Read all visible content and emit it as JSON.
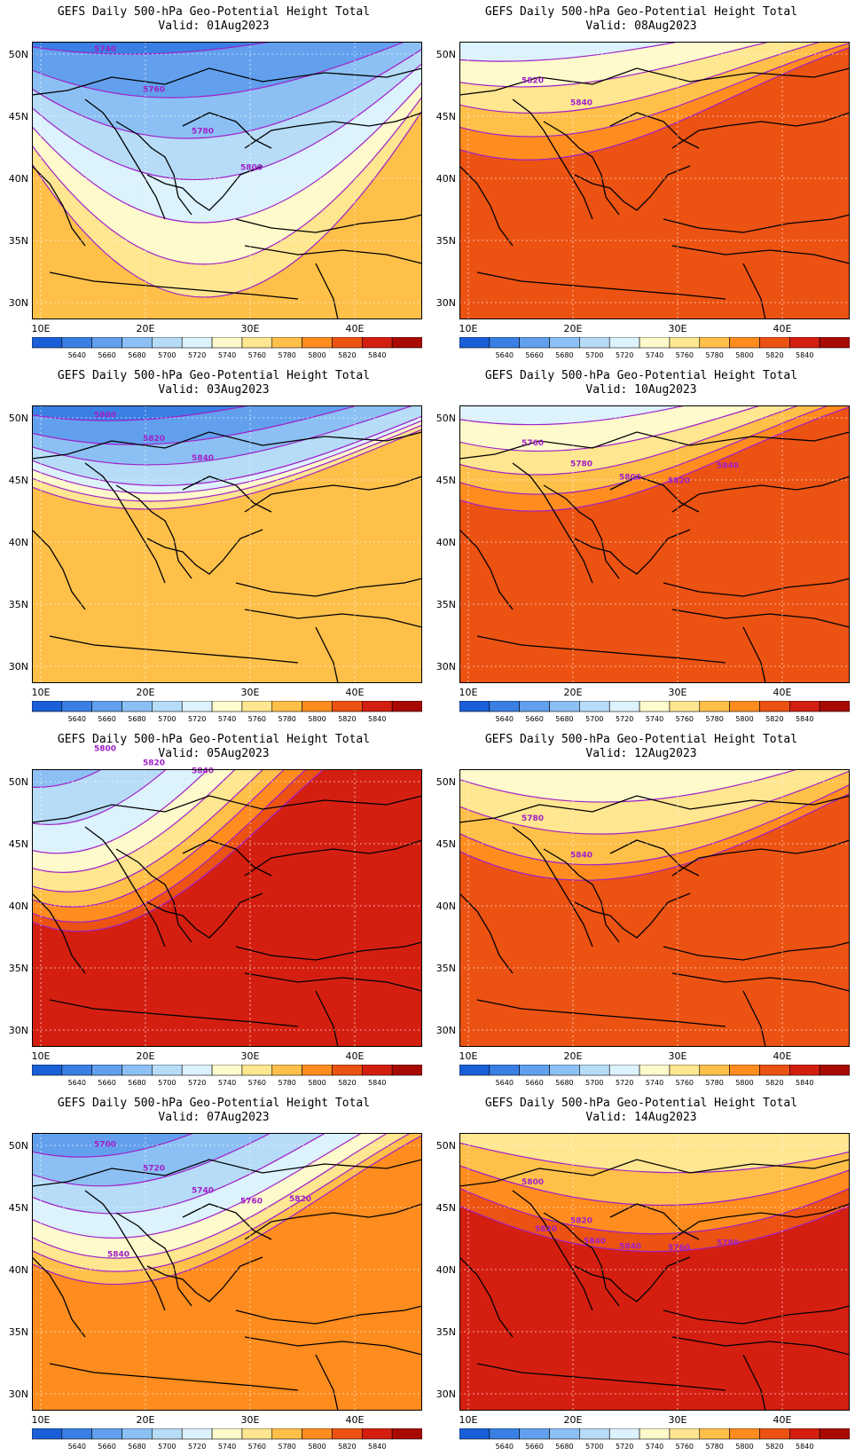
{
  "panels": [
    {
      "line1": "GEFS Daily 500-hPa Geo-Potential Height Total",
      "line2": "Valid: 01Aug2023",
      "labels": [
        "5740",
        "5760",
        "5780",
        "5800"
      ]
    },
    {
      "line1": "GEFS Daily 500-hPa Geo-Potential Height Total",
      "line2": "Valid: 08Aug2023",
      "labels": [
        "5820",
        "5840"
      ]
    },
    {
      "line1": "GEFS Daily 500-hPa Geo-Potential Height Total",
      "line2": "Valid: 03Aug2023",
      "labels": [
        "5800",
        "5820",
        "5840"
      ]
    },
    {
      "line1": "GEFS Daily 500-hPa Geo-Potential Height Total",
      "line2": "Valid: 10Aug2023",
      "labels": [
        "5760",
        "5780",
        "5800",
        "5820",
        "5840"
      ]
    },
    {
      "line1": "GEFS Daily 500-hPa Geo-Potential Height Total",
      "line2": "Valid: 05Aug2023",
      "labels": [
        "5800",
        "5820",
        "5840"
      ]
    },
    {
      "line1": "GEFS Daily 500-hPa Geo-Potential Height Total",
      "line2": "Valid: 12Aug2023",
      "labels": [
        "5780",
        "5840"
      ]
    },
    {
      "line1": "GEFS Daily 500-hPa Geo-Potential Height Total",
      "line2": "Valid: 07Aug2023",
      "labels": [
        "5700",
        "5720",
        "5740",
        "5760",
        "5820",
        "5840"
      ]
    },
    {
      "line1": "GEFS Daily 500-hPa Geo-Potential Height Total",
      "line2": "Valid: 14Aug2023",
      "labels": [
        "5800",
        "5820",
        "5840",
        "5760",
        "5780",
        "5820",
        "5840"
      ]
    }
  ],
  "axes": {
    "lat_labels": [
      "50N",
      "45N",
      "40N",
      "35N",
      "30N"
    ],
    "lon_labels": [
      "10E",
      "20E",
      "30E",
      "40E"
    ]
  },
  "colorbar": {
    "labels": [
      "5640",
      "5660",
      "5680",
      "5700",
      "5720",
      "5740",
      "5760",
      "5780",
      "5800",
      "5820",
      "5840"
    ],
    "colors": [
      "#1a5fd8",
      "#3a7fe4",
      "#62a0ee",
      "#8cc0f4",
      "#b6dcf8",
      "#dcf2fc",
      "#fffacc",
      "#ffe690",
      "#ffc04a",
      "#ff8c1e",
      "#ec5212",
      "#d41f10",
      "#a80a02"
    ]
  },
  "colors": {
    "ocean_dark_red": "#a80a02",
    "contour": "#a020c8",
    "grid": "#ffffff"
  }
}
